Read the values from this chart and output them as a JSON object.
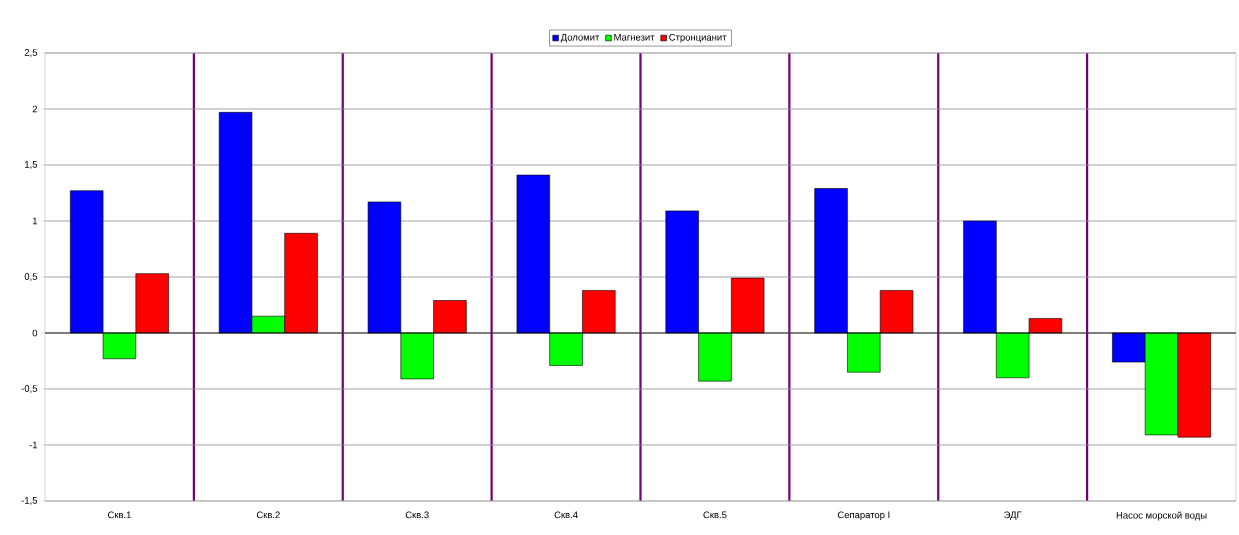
{
  "chart_data": {
    "type": "bar",
    "categories": [
      "Скв.1",
      "Скв.2",
      "Скв.3",
      "Скв.4",
      "Скв.5",
      "Сепаратор I",
      "ЭДГ",
      "Насос морской воды"
    ],
    "series": [
      {
        "name": "Доломит",
        "color": "#0000ff",
        "values": [
          1.27,
          1.97,
          1.17,
          1.41,
          1.09,
          1.29,
          1.0,
          -0.26
        ]
      },
      {
        "name": "Магнезит",
        "color": "#00ff00",
        "values": [
          -0.23,
          0.15,
          -0.41,
          -0.29,
          -0.43,
          -0.35,
          -0.4,
          -0.91
        ]
      },
      {
        "name": "Стронцианит",
        "color": "#ff0000",
        "values": [
          0.53,
          0.89,
          0.29,
          0.38,
          0.49,
          0.38,
          0.13,
          -0.93
        ]
      }
    ],
    "ylim": [
      -1.5,
      2.5
    ],
    "yticks": [
      {
        "value": -1.5,
        "label": "-1,5"
      },
      -1,
      {
        "value": -0.5,
        "label": "-0,5"
      },
      0,
      {
        "value": 0.5,
        "label": "0,5"
      },
      1,
      {
        "value": 1.5,
        "label": "1,5"
      },
      2,
      {
        "value": 2.5,
        "label": "2,5"
      }
    ],
    "grid": true,
    "legend": "top"
  }
}
